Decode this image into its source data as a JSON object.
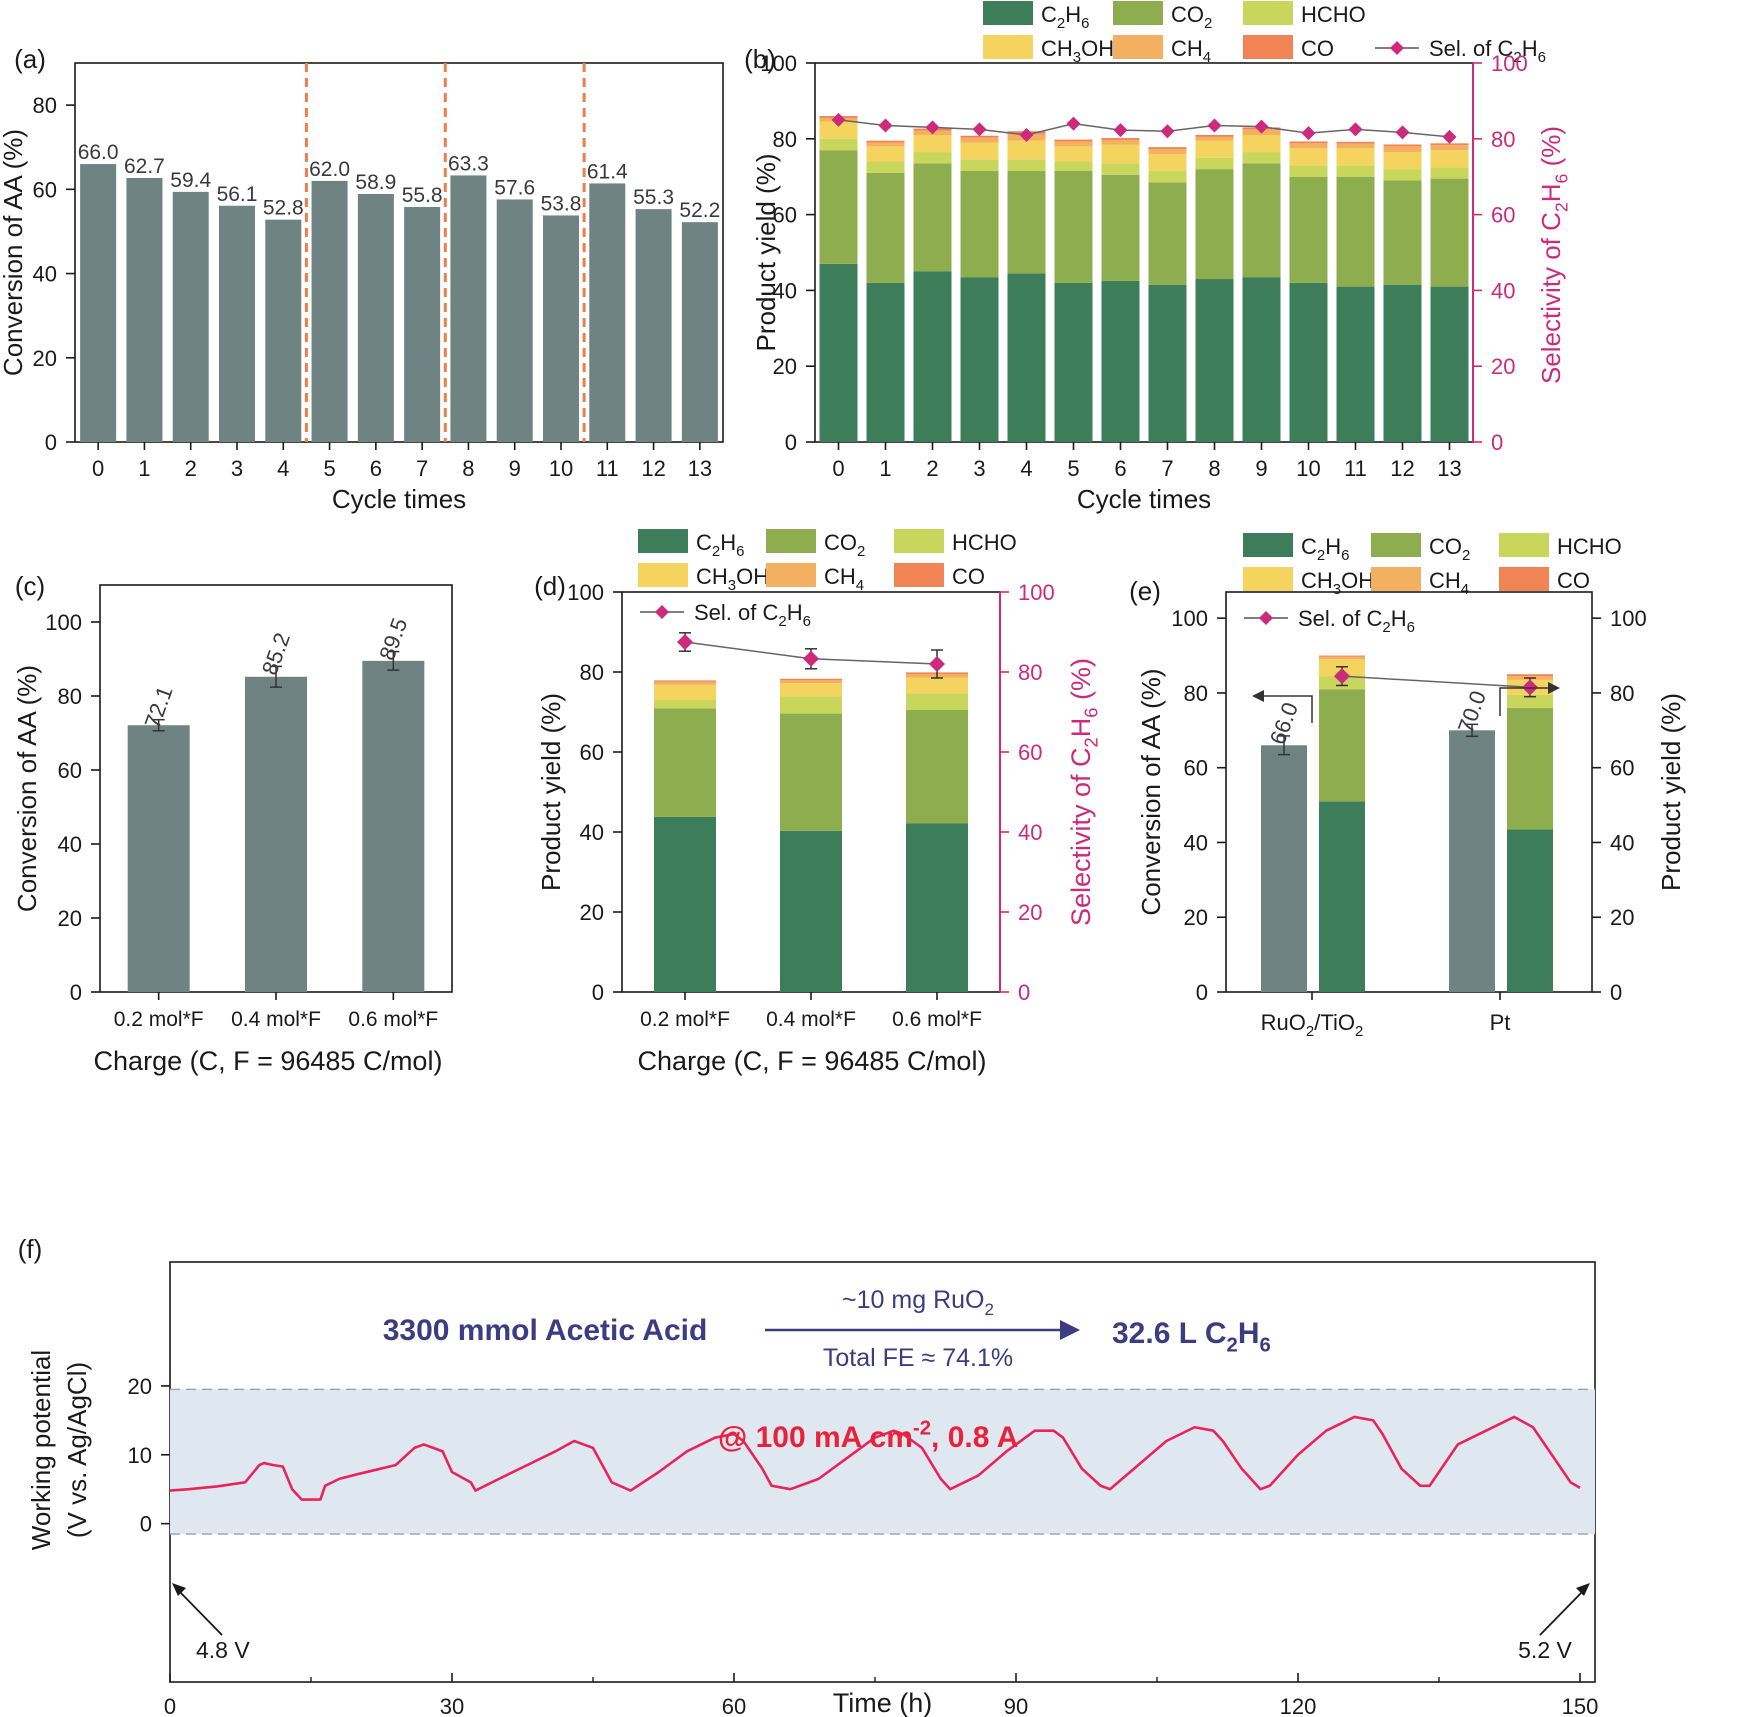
{
  "figure": {
    "panel_labels": [
      "(a)",
      "(b)",
      "(c)",
      "(d)",
      "(e)",
      "(f)"
    ],
    "colors": {
      "bar_gray": "#6f8383",
      "C2H6": "#3d7d5a",
      "CO2": "#8ead4f",
      "HCHO": "#c9d65c",
      "CH3OH": "#f4d35e",
      "CH4": "#f4b061",
      "CO": "#f08455",
      "selectivity": "#cc2a7a",
      "divider": "#f07d4a",
      "fline": "#e8245a",
      "fband": "#dfe7f1",
      "scheme": "#3c3c82",
      "fcond": "#e8223a"
    }
  },
  "chart_data": [
    {
      "id": "a",
      "type": "bar",
      "categories": [
        "0",
        "1",
        "2",
        "3",
        "4",
        "5",
        "6",
        "7",
        "8",
        "9",
        "10",
        "11",
        "12",
        "13"
      ],
      "values": [
        66.0,
        62.7,
        59.4,
        56.1,
        52.8,
        62.0,
        58.9,
        55.8,
        63.3,
        57.6,
        53.8,
        61.4,
        55.3,
        52.2
      ],
      "value_labels": [
        "66.0",
        "62.7",
        "59.4",
        "56.1",
        "52.8",
        "62.0",
        "58.9",
        "55.8",
        "63.3",
        "57.6",
        "53.8",
        "61.4",
        "55.3",
        "52.2"
      ],
      "dividers_after_categories": [
        "4",
        "7",
        "10"
      ],
      "xlabel": "Cycle times",
      "ylabel": "Conversion of AA (%)",
      "ylim": [
        0,
        90
      ],
      "yticks": [
        "0",
        "20",
        "40",
        "60",
        "80"
      ]
    },
    {
      "id": "b",
      "type": "stacked-bar+line",
      "categories": [
        "0",
        "1",
        "2",
        "3",
        "4",
        "5",
        "6",
        "7",
        "8",
        "9",
        "10",
        "11",
        "12",
        "13"
      ],
      "legend": [
        {
          "key": "C2H6",
          "label": "C",
          "sub": "2",
          "label2": "H",
          "sub2": "6"
        },
        {
          "key": "CO2",
          "label": "CO",
          "sub": "2",
          "label2": "",
          "sub2": ""
        },
        {
          "key": "HCHO",
          "label": "HCHO",
          "sub": "",
          "label2": "",
          "sub2": ""
        },
        {
          "key": "CH3OH",
          "label": "CH",
          "sub": "3",
          "label2": "OH",
          "sub2": ""
        },
        {
          "key": "CH4",
          "label": "CH",
          "sub": "4",
          "label2": "",
          "sub2": ""
        },
        {
          "key": "CO",
          "label": "CO",
          "sub": "",
          "label2": "",
          "sub2": ""
        },
        {
          "key": "sel",
          "label": "Sel. of C",
          "sub": "2",
          "label2": "H",
          "sub2": "6"
        }
      ],
      "series": [
        {
          "key": "C2H6",
          "values": [
            47,
            42,
            45,
            43.5,
            44.5,
            42,
            42.5,
            41.5,
            43,
            43.5,
            42,
            41,
            41.5,
            41
          ]
        },
        {
          "key": "CO2",
          "values": [
            30,
            29,
            28.5,
            28,
            27,
            29.5,
            28,
            27,
            29,
            30,
            28,
            29,
            27.5,
            28.5
          ]
        },
        {
          "key": "HCHO",
          "values": [
            3,
            3,
            3,
            3,
            3,
            2.5,
            3,
            3,
            3,
            3,
            3,
            3,
            3,
            3
          ]
        },
        {
          "key": "CH3OH",
          "values": [
            4.5,
            4,
            4.5,
            4.5,
            5,
            4,
            5,
            4.5,
            4.5,
            4.5,
            4.5,
            4.5,
            4.5,
            4.5
          ]
        },
        {
          "key": "CH4",
          "values": [
            1,
            1,
            1.2,
            1.3,
            1.8,
            1.3,
            1.2,
            1.3,
            1,
            1.5,
            1.3,
            1.2,
            1.5,
            1.3
          ]
        },
        {
          "key": "CO",
          "values": [
            0.5,
            0.5,
            0.5,
            0.5,
            0.7,
            0.5,
            0.5,
            0.5,
            0.5,
            0.5,
            0.5,
            0.5,
            0.5,
            0.5
          ]
        }
      ],
      "selectivity": [
        85,
        83.5,
        83,
        82.5,
        81,
        84,
        82.3,
        82,
        83.5,
        83.2,
        81.5,
        82.5,
        81.7,
        80.5
      ],
      "xlabel": "Cycle times",
      "ylabel": "Product yield (%)",
      "y2label": "Selectivity of C2H6 (%)",
      "ylim": [
        0,
        100
      ],
      "y2lim": [
        0,
        100
      ],
      "yticks": [
        "0",
        "20",
        "40",
        "60",
        "80",
        "100"
      ]
    },
    {
      "id": "c",
      "type": "bar",
      "categories": [
        "0.2 mol*F",
        "0.4 mol*F",
        "0.6 mol*F"
      ],
      "values": [
        72.1,
        85.2,
        89.5
      ],
      "errors": [
        1.5,
        2.8,
        2.5
      ],
      "value_labels": [
        "72.1",
        "85.2",
        "89.5"
      ],
      "xlabel": "Charge (C, F = 96485 C/mol)",
      "ylabel": "Conversion of AA (%)",
      "ylim": [
        0,
        110
      ],
      "yticks": [
        "0",
        "20",
        "40",
        "60",
        "80",
        "100"
      ]
    },
    {
      "id": "d",
      "type": "stacked-bar+line",
      "categories": [
        "0.2 mol*F",
        "0.4 mol*F",
        "0.6 mol*F"
      ],
      "series": [
        {
          "key": "C2H6",
          "values": [
            43.8,
            40.3,
            42.2
          ]
        },
        {
          "key": "CO2",
          "values": [
            27.1,
            29.3,
            28.3
          ]
        },
        {
          "key": "HCHO",
          "values": [
            2.1,
            4.3,
            4.2
          ]
        },
        {
          "key": "CH3OH",
          "values": [
            3.8,
            3.3,
            3.9
          ]
        },
        {
          "key": "CH4",
          "values": [
            0.8,
            0.8,
            0.9
          ]
        },
        {
          "key": "CO",
          "values": [
            0.3,
            0.3,
            0.4
          ]
        }
      ],
      "selectivity": [
        87.5,
        83.3,
        82
      ],
      "selectivity_err": [
        2.3,
        2.5,
        3.5
      ],
      "xlabel": "Charge (C, F = 96485 C/mol)",
      "ylabel": "Product yield (%)",
      "y2label": "Selectivity of C2H6 (%)",
      "ylim": [
        0,
        100
      ],
      "y2lim": [
        0,
        100
      ],
      "yticks": [
        "0",
        "20",
        "40",
        "60",
        "80",
        "100"
      ]
    },
    {
      "id": "e",
      "type": "bar+stacked-bar",
      "categories": [
        "RuO2/TiO2",
        "Pt"
      ],
      "conversion": [
        66.0,
        70.0
      ],
      "conversion_err": [
        2.5,
        1.6
      ],
      "conversion_labels": [
        "66.0",
        "70.0"
      ],
      "series": [
        {
          "key": "C2H6",
          "values": [
            51,
            43.5
          ]
        },
        {
          "key": "CO2",
          "values": [
            30,
            32.5
          ]
        },
        {
          "key": "HCHO",
          "values": [
            3.5,
            3.5
          ]
        },
        {
          "key": "CH3OH",
          "values": [
            4.5,
            4
          ]
        },
        {
          "key": "CH4",
          "values": [
            0.7,
            1
          ]
        },
        {
          "key": "CO",
          "values": [
            0.3,
            0.5
          ]
        }
      ],
      "selectivity": [
        84.5,
        81.5
      ],
      "selectivity_err": [
        2.5,
        2.5
      ],
      "ylabel": "Conversion of AA (%)",
      "y2label": "Product yield (%)",
      "ylim": [
        0,
        107
      ],
      "y2lim": [
        0,
        107
      ],
      "yticks": [
        "0",
        "20",
        "40",
        "60",
        "80",
        "100"
      ]
    },
    {
      "id": "f",
      "type": "line",
      "xlabel": "Time (h)",
      "ylabel_line1": "Working potential",
      "ylabel_line2": "(V vs. Ag/AgCl)",
      "xlim": [
        0,
        150
      ],
      "ylim": [
        -23,
        38
      ],
      "xticks": [
        "0",
        "30",
        "60",
        "90",
        "120",
        "150"
      ],
      "yticks": [
        "0",
        "10",
        "20"
      ],
      "band": [
        -1.5,
        19.5
      ],
      "x": [
        0,
        2,
        5,
        8,
        9.5,
        10,
        11,
        12,
        13,
        14,
        16,
        16.5,
        18,
        20,
        24,
        26,
        27,
        28,
        29,
        30,
        32,
        32.5,
        35,
        38,
        41,
        43,
        44,
        45,
        47,
        49,
        52,
        55,
        58,
        60,
        61,
        63,
        64,
        66,
        69,
        72,
        75,
        77,
        78,
        80,
        82,
        83,
        86,
        89,
        92,
        94,
        95,
        97,
        99,
        100,
        103,
        106,
        109,
        111,
        112,
        114,
        116,
        117,
        120,
        123,
        126,
        128,
        129,
        131,
        133,
        134,
        137,
        140,
        143,
        145,
        147,
        149,
        150
      ],
      "y": [
        4.8,
        5,
        5.4,
        6,
        8.5,
        8.8,
        8.5,
        8.3,
        5,
        3.5,
        3.5,
        5.5,
        6.5,
        7.2,
        8.5,
        11,
        11.5,
        11,
        10.5,
        7.5,
        6,
        4.8,
        6.5,
        8.5,
        10.5,
        12,
        11.5,
        11,
        6,
        4.8,
        7.5,
        10.5,
        12.5,
        13,
        12,
        8,
        5.5,
        5,
        6.5,
        9.5,
        12.5,
        13.5,
        13,
        11,
        6.5,
        5,
        7,
        10.5,
        13.5,
        13.5,
        12.5,
        8,
        5.5,
        5,
        8.5,
        12,
        14,
        13.5,
        12,
        8,
        5,
        5.5,
        10,
        13.5,
        15.5,
        15,
        13,
        8,
        5.5,
        5.5,
        11.5,
        13.5,
        15.5,
        14,
        10,
        6,
        5.2
      ],
      "start_annot": "4.8 V",
      "end_annot": "5.2 V",
      "scheme": {
        "reactant": "3300 mmol Acetic Acid",
        "catalyst": "~10 mg RuO",
        "catalyst_sub": "2",
        "fe": "Total FE ≈ 74.1%",
        "product": "32.6 L C",
        "product_sub": "2",
        "product_mid": "H",
        "product_sub2": "6"
      },
      "condition": {
        "part1": "@ 100 mA cm",
        "sup": "-2",
        "part2": ", 0.8 A"
      }
    }
  ]
}
